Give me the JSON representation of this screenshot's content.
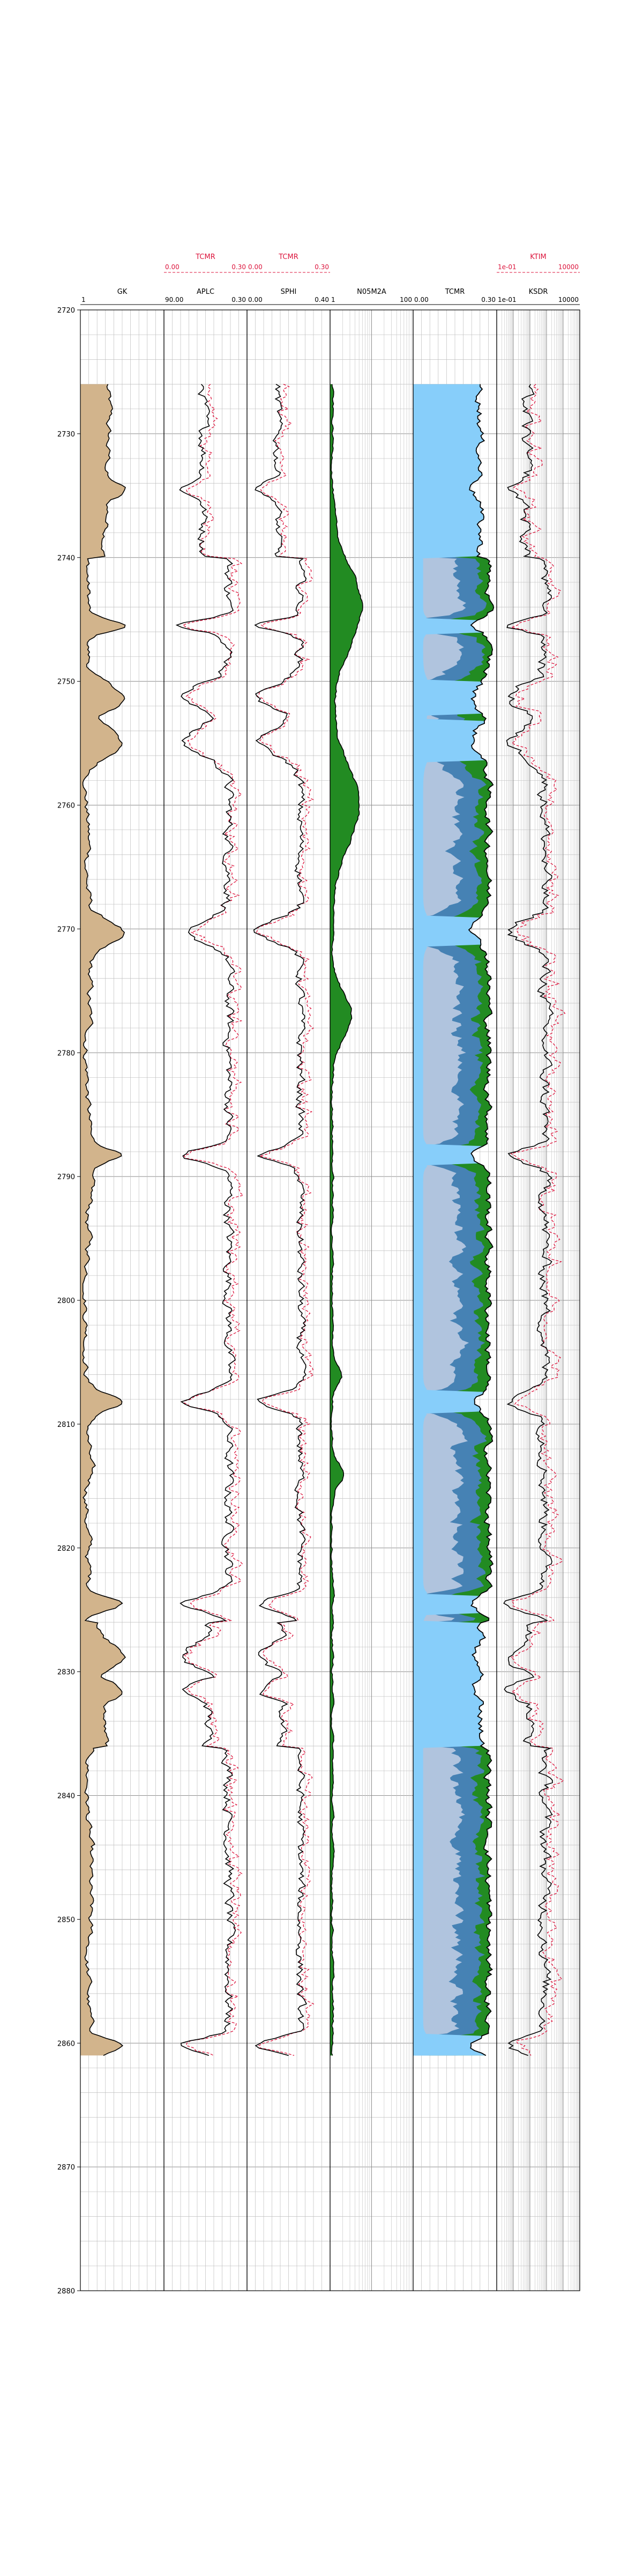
{
  "chart_data": {
    "type": "well-log",
    "depth_axis": {
      "min": 2720,
      "max": 2880,
      "major_step": 10,
      "minor_step": 2
    },
    "depth_tick_labels": [
      "2720",
      "2730",
      "2740",
      "2750",
      "2760",
      "2770",
      "2780",
      "2790",
      "2800",
      "2810",
      "2820",
      "2830",
      "2840",
      "2850",
      "2860",
      "2870",
      "2880"
    ],
    "data_depth_range": [
      2726,
      2861
    ],
    "colors": {
      "curve": "#000000",
      "overlay": "#dc143c",
      "gr_fill": "#d2b48c",
      "ratio_fill": "#228b22",
      "tcmr_fill": "#87cefa",
      "porosity_fill": "#4682b4",
      "bound_fill": "#b0c4de",
      "grid": "#a9a9a9"
    },
    "tracks": [
      {
        "id": "gr",
        "header": {
          "label": "GK",
          "min": "1",
          "max": ""
        },
        "overlay_header": null,
        "scale": "linear",
        "fill": "gr-left"
      },
      {
        "id": "aplc",
        "header": {
          "label": "APLC",
          "min": "90.00",
          "max": "0.30"
        },
        "overlay_header": {
          "label": "TCMR",
          "min": "0.00",
          "max": "0.30"
        },
        "scale": "linear",
        "fill": null
      },
      {
        "id": "sphi",
        "header": {
          "label": "SPHI",
          "min": "0.00",
          "max": "0.40"
        },
        "overlay_header": {
          "label": "TCMR",
          "min": "0.00",
          "max": "0.30"
        },
        "scale": "linear",
        "fill": null
      },
      {
        "id": "ratio",
        "header": {
          "label": "N05M2A",
          "min": "1",
          "max": "100"
        },
        "overlay_header": null,
        "scale": "log",
        "fill": "ratio-left"
      },
      {
        "id": "tcmr",
        "header": {
          "label": "TCMR",
          "min": "0.00",
          "max": "0.30"
        },
        "overlay_header": null,
        "scale": "linear",
        "fill": "nmr-stack"
      },
      {
        "id": "ksdr",
        "header": {
          "label": "KSDR",
          "min": "1e-01",
          "max": "10000"
        },
        "overlay_header": {
          "label": "KTIM",
          "min": "1e-01",
          "max": "10000"
        },
        "scale": "log",
        "fill": null
      }
    ]
  }
}
